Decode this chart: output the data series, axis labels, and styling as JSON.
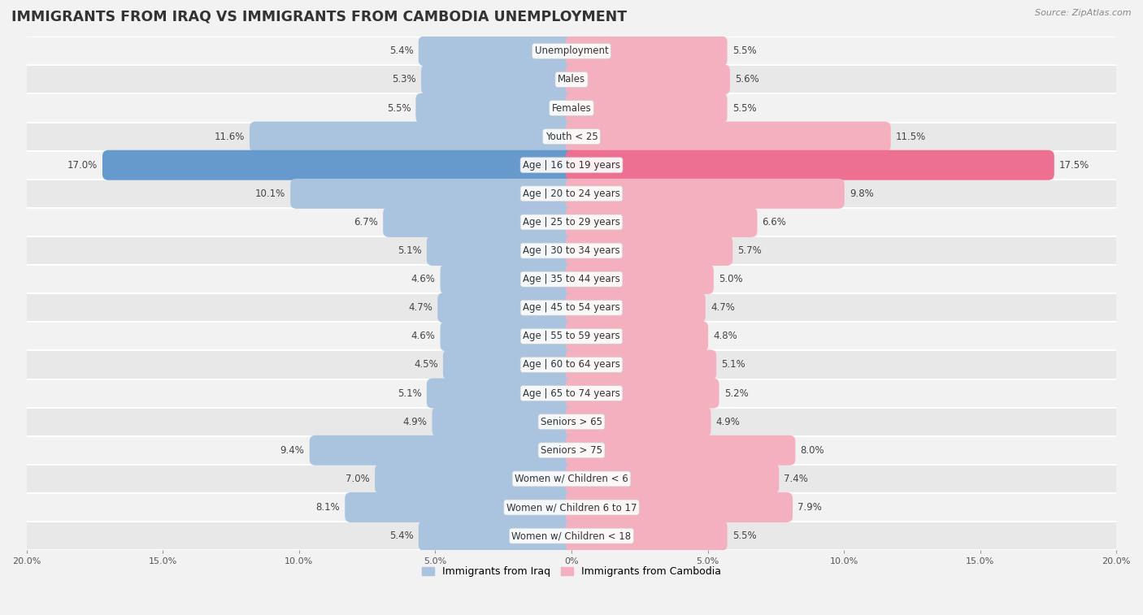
{
  "title": "IMMIGRANTS FROM IRAQ VS IMMIGRANTS FROM CAMBODIA UNEMPLOYMENT",
  "source": "Source: ZipAtlas.com",
  "categories": [
    "Unemployment",
    "Males",
    "Females",
    "Youth < 25",
    "Age | 16 to 19 years",
    "Age | 20 to 24 years",
    "Age | 25 to 29 years",
    "Age | 30 to 34 years",
    "Age | 35 to 44 years",
    "Age | 45 to 54 years",
    "Age | 55 to 59 years",
    "Age | 60 to 64 years",
    "Age | 65 to 74 years",
    "Seniors > 65",
    "Seniors > 75",
    "Women w/ Children < 6",
    "Women w/ Children 6 to 17",
    "Women w/ Children < 18"
  ],
  "iraq_values": [
    5.4,
    5.3,
    5.5,
    11.6,
    17.0,
    10.1,
    6.7,
    5.1,
    4.6,
    4.7,
    4.6,
    4.5,
    5.1,
    4.9,
    9.4,
    7.0,
    8.1,
    5.4
  ],
  "cambodia_values": [
    5.5,
    5.6,
    5.5,
    11.5,
    17.5,
    9.8,
    6.6,
    5.7,
    5.0,
    4.7,
    4.8,
    5.1,
    5.2,
    4.9,
    8.0,
    7.4,
    7.9,
    5.5
  ],
  "iraq_color": "#aac4e0",
  "cambodia_color": "#f5b0c0",
  "iraq_highlight_color": "#6699cc",
  "cambodia_highlight_color": "#ee7090",
  "row_bg_colors": [
    "#f2f2f2",
    "#e8e8e8"
  ],
  "max_val": 20.0,
  "legend_iraq": "Immigrants from Iraq",
  "legend_cambodia": "Immigrants from Cambodia",
  "title_fontsize": 12.5,
  "source_fontsize": 8,
  "label_fontsize": 8.5,
  "value_fontsize": 8.5,
  "tick_fontsize": 8
}
